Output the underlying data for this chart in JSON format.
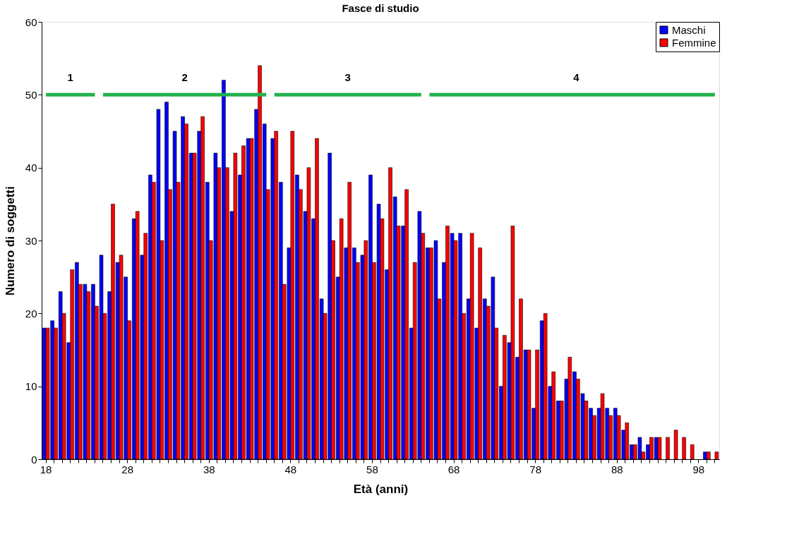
{
  "chart_data": {
    "type": "bar",
    "title": "Fasce di studio",
    "xlabel": "Età (anni)",
    "ylabel": "Numero di soggetti",
    "categories": [
      "18",
      null,
      null,
      null,
      null,
      null,
      null,
      null,
      null,
      null,
      "28",
      null,
      null,
      null,
      null,
      null,
      null,
      null,
      null,
      null,
      "38",
      null,
      null,
      null,
      null,
      null,
      null,
      null,
      null,
      null,
      "48",
      null,
      null,
      null,
      null,
      null,
      null,
      null,
      null,
      null,
      "58",
      null,
      null,
      null,
      null,
      null,
      null,
      null,
      null,
      null,
      "68",
      null,
      null,
      null,
      null,
      null,
      null,
      null,
      null,
      null,
      "78",
      null,
      null,
      null,
      null,
      null,
      null,
      null,
      null,
      null,
      "88",
      null,
      null,
      null,
      null,
      null,
      null,
      null,
      null,
      null,
      "98",
      null,
      null
    ],
    "series": [
      {
        "name": "Maschi",
        "color": "#0000ff",
        "values": [
          18,
          19,
          23,
          16,
          27,
          24,
          24,
          28,
          23,
          27,
          25,
          33,
          28,
          39,
          48,
          49,
          45,
          47,
          42,
          45,
          38,
          42,
          52,
          34,
          39,
          44,
          48,
          46,
          44,
          38,
          29,
          39,
          34,
          33,
          22,
          42,
          25,
          29,
          29,
          28,
          39,
          35,
          26,
          36,
          32,
          18,
          34,
          29,
          30,
          27,
          31,
          31,
          22,
          18,
          22,
          25,
          10,
          16,
          14,
          15,
          7,
          19,
          10,
          8,
          11,
          12,
          9,
          7,
          7,
          7,
          7,
          4,
          2,
          3,
          2,
          3,
          null,
          null,
          null,
          null,
          null,
          1,
          null
        ]
      },
      {
        "name": "Femmine",
        "color": "#ff0000",
        "values": [
          18,
          18,
          20,
          26,
          24,
          23,
          21,
          20,
          35,
          28,
          19,
          34,
          31,
          38,
          30,
          37,
          38,
          46,
          42,
          47,
          30,
          40,
          40,
          42,
          43,
          44,
          54,
          37,
          45,
          24,
          45,
          37,
          40,
          44,
          20,
          30,
          33,
          38,
          27,
          30,
          27,
          33,
          40,
          32,
          37,
          27,
          31,
          29,
          22,
          32,
          30,
          20,
          31,
          29,
          21,
          18,
          17,
          32,
          22,
          15,
          15,
          20,
          12,
          8,
          14,
          11,
          8,
          6,
          9,
          6,
          6,
          5,
          2,
          1,
          3,
          3,
          3,
          4,
          3,
          2,
          null,
          1,
          1
        ]
      },
      {
        "name": "1",
        "type": "line",
        "color": "#22b14c",
        "values": [
          50,
          50,
          50,
          50,
          50,
          50,
          50,
          null,
          null,
          null,
          null,
          null,
          null,
          null,
          null,
          null,
          null,
          null,
          null,
          null,
          null,
          null,
          null,
          null,
          null,
          null,
          null,
          null,
          null,
          null,
          null,
          null,
          null,
          null,
          null,
          null,
          null,
          null,
          null,
          null,
          null,
          null,
          null,
          null,
          null,
          null,
          null,
          null,
          null,
          null,
          null,
          null,
          null,
          null,
          null,
          null,
          null,
          null,
          null,
          null,
          null,
          null,
          null,
          null,
          null,
          null,
          null,
          null,
          null,
          null,
          null,
          null,
          null,
          null,
          null,
          null,
          null,
          null,
          null,
          null,
          null,
          null,
          null
        ]
      },
      {
        "name": "2",
        "type": "line",
        "color": "#22b14c",
        "values": [
          null,
          null,
          null,
          null,
          null,
          null,
          null,
          50,
          50,
          50,
          50,
          50,
          50,
          50,
          50,
          50,
          50,
          50,
          50,
          50,
          50,
          50,
          50,
          50,
          50,
          50,
          50,
          50,
          null,
          null,
          null,
          null,
          null,
          null,
          null,
          null,
          null,
          null,
          null,
          null,
          null,
          null,
          null,
          null,
          null,
          null,
          null,
          null,
          null,
          null,
          null,
          null,
          null,
          null,
          null,
          null,
          null,
          null,
          null,
          null,
          null,
          null,
          null,
          null,
          null,
          null,
          null,
          null,
          null,
          null,
          null,
          null,
          null,
          null,
          null,
          null,
          null,
          null,
          null,
          null,
          null,
          null,
          null
        ]
      },
      {
        "name": "3",
        "type": "line",
        "color": "#22b14c",
        "values": [
          null,
          null,
          null,
          null,
          null,
          null,
          null,
          null,
          null,
          null,
          null,
          null,
          null,
          null,
          null,
          null,
          null,
          null,
          null,
          null,
          null,
          null,
          null,
          null,
          null,
          null,
          null,
          null,
          50,
          50,
          50,
          50,
          50,
          50,
          50,
          50,
          50,
          50,
          50,
          50,
          50,
          50,
          50,
          50,
          50,
          50,
          50,
          null,
          null,
          null,
          null,
          null,
          null,
          null,
          null,
          null,
          null,
          null,
          null,
          null,
          null,
          null,
          null,
          null,
          null,
          null,
          null,
          null,
          null,
          null,
          null,
          null,
          null,
          null,
          null,
          null,
          null,
          null,
          null,
          null,
          null,
          null,
          null
        ]
      },
      {
        "name": "4",
        "type": "line",
        "color": "#22b14c",
        "values": [
          null,
          null,
          null,
          null,
          null,
          null,
          null,
          null,
          null,
          null,
          null,
          null,
          null,
          null,
          null,
          null,
          null,
          null,
          null,
          null,
          null,
          null,
          null,
          null,
          null,
          null,
          null,
          null,
          null,
          null,
          null,
          null,
          null,
          null,
          null,
          null,
          null,
          null,
          null,
          null,
          null,
          null,
          null,
          null,
          null,
          null,
          null,
          50,
          50,
          50,
          50,
          50,
          50,
          50,
          50,
          50,
          50,
          50,
          50,
          50,
          50,
          50,
          50,
          50,
          50,
          50,
          50,
          50,
          50,
          50,
          50,
          50,
          50,
          50,
          50,
          50,
          50,
          50,
          50,
          50,
          50,
          50,
          50
        ]
      }
    ],
    "ylim": [
      0,
      60
    ],
    "yticks": [
      0,
      10,
      20,
      30,
      40,
      50,
      60
    ],
    "legend": "top right"
  }
}
